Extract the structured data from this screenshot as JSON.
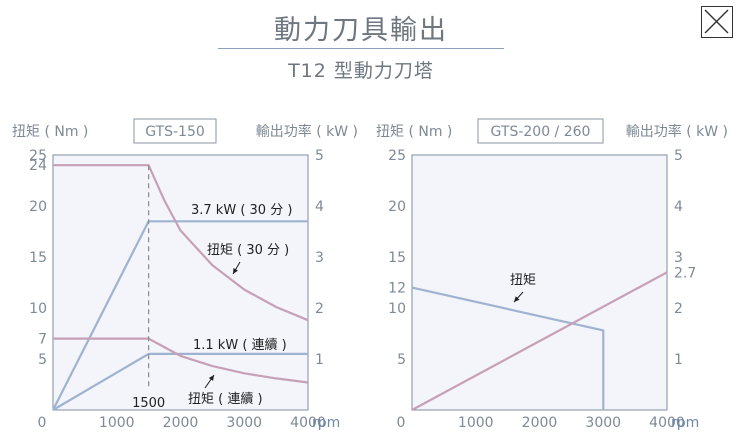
{
  "header": {
    "title": "動力刀具輸出",
    "subtitle": "T12 型動力刀塔"
  },
  "colors": {
    "torque": "#c7a0b8",
    "power": "#9fb3d1",
    "plot_bg": "#f3f5fa",
    "axis_label": "#7d8a96",
    "unit_label": "#6f87a8"
  },
  "chart_data": [
    {
      "type": "line",
      "model": "GTS-150",
      "left_axis_label": "扭矩 ( Nm )",
      "right_axis_label": "輸出功率 ( kW )",
      "x_unit": "rpm",
      "xlim": [
        0,
        4000
      ],
      "ylim_left": [
        0,
        25
      ],
      "ylim_right": [
        0,
        5
      ],
      "x_ticks": [
        "0",
        "1000",
        "2000",
        "3000",
        "4000"
      ],
      "left_ticks": [
        "25",
        "24",
        "20",
        "15",
        "10",
        "7",
        "5"
      ],
      "right_ticks": [
        "5",
        "4",
        "3",
        "2",
        "1"
      ],
      "series": [
        {
          "name": "3.7 kW ( 30 分 )",
          "axis": "right",
          "color": "power",
          "points": [
            [
              0,
              0
            ],
            [
              1500,
              3.7
            ],
            [
              4000,
              3.7
            ]
          ]
        },
        {
          "name": "1.1 kW ( 連續 )",
          "axis": "right",
          "color": "power",
          "points": [
            [
              0,
              0
            ],
            [
              1500,
              1.1
            ],
            [
              4000,
              1.1
            ]
          ]
        },
        {
          "name": "扭矩 ( 30 分 )",
          "axis": "left",
          "color": "torque",
          "points": [
            [
              0,
              24
            ],
            [
              1500,
              24
            ],
            [
              1750,
              20.5
            ],
            [
              2000,
              17.6
            ],
            [
              2500,
              14.2
            ],
            [
              3000,
              11.8
            ],
            [
              3500,
              10.1
            ],
            [
              4000,
              8.8
            ]
          ]
        },
        {
          "name": "扭矩 ( 連續 )",
          "axis": "left",
          "color": "torque",
          "points": [
            [
              0,
              7
            ],
            [
              1500,
              7
            ],
            [
              2000,
              5.3
            ],
            [
              2500,
              4.3
            ],
            [
              3000,
              3.6
            ],
            [
              3500,
              3.1
            ],
            [
              4000,
              2.7
            ]
          ]
        }
      ],
      "annotations": {
        "base_speed": "1500",
        "torque_30": "扭矩 ( 30 分 )",
        "torque_cont": "扭矩 ( 連續 )",
        "power_30": "3.7 kW ( 30 分 )",
        "power_cont": "1.1 kW ( 連續 )"
      }
    },
    {
      "type": "line",
      "model": "GTS-200 / 260",
      "left_axis_label": "扭矩 ( Nm )",
      "right_axis_label": "輸出功率 ( kW )",
      "x_unit": "rpm",
      "xlim": [
        0,
        4000
      ],
      "ylim_left": [
        0,
        25
      ],
      "ylim_right": [
        0,
        5
      ],
      "x_ticks": [
        "0",
        "1000",
        "2000",
        "3000",
        "4000"
      ],
      "left_ticks": [
        "25",
        "20",
        "15",
        "12",
        "10",
        "5"
      ],
      "right_ticks": [
        "5",
        "4",
        "3",
        "2.7",
        "2",
        "1"
      ],
      "series": [
        {
          "name": "扭矩",
          "axis": "left",
          "color": "power",
          "points": [
            [
              0,
              12
            ],
            [
              3000,
              7.8
            ],
            [
              3000,
              0
            ]
          ]
        },
        {
          "name": "輸出功率",
          "axis": "right",
          "color": "torque",
          "points": [
            [
              0,
              0
            ],
            [
              4000,
              2.7
            ]
          ]
        }
      ],
      "annotations": {
        "torque": "扭矩"
      }
    }
  ]
}
